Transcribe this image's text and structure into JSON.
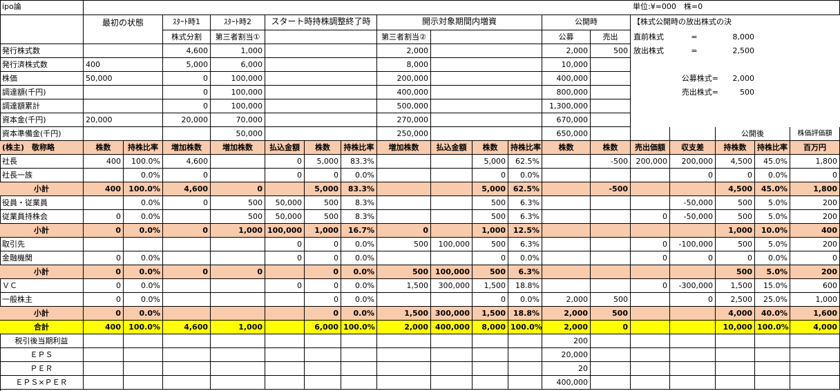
{
  "sheet": {
    "title": "ipo論",
    "unit_note": "単位:¥=000　株=0"
  },
  "top_headers": {
    "initial": "最初の状態",
    "start1": "ｽﾀｰﾄ時1",
    "start2": "ｽﾀｰﾄ時2",
    "start_end": "スタート時持株調整終了時",
    "disclosure": "開示対象期間内増資",
    "listing": "公開時",
    "release_title": "【株式公開時の放出株式の決",
    "split": "株式分割",
    "third1": "第三者割当①",
    "third2": "第三者割当②",
    "public_offer": "公募",
    "sale": "売出"
  },
  "release": {
    "pre_label": "直前株式",
    "pre_eq": "=",
    "pre_val": "8,000",
    "rel_label": "放出株式",
    "rel_eq": "=",
    "rel_val": "2,500",
    "pub_label": "公募株式=",
    "pub_val": "2,000",
    "sale_label": "売出株式=",
    "sale_val": "500"
  },
  "upper_rows": [
    {
      "label": "発行株式数",
      "init": "",
      "s1": "4,600",
      "s2": "1,000",
      "end": "",
      "d2": "2,000",
      "pub": "2,000",
      "sale": "500"
    },
    {
      "label": "発行済株式数",
      "init": "400",
      "s1": "5,000",
      "s2": "6,000",
      "end": "",
      "d2": "8,000",
      "pub": "10,000",
      "sale": ""
    },
    {
      "label": "株価",
      "init": "50,000",
      "s1": "0",
      "s2": "100,000",
      "end": "",
      "d2": "200,000",
      "pub": "400,000",
      "sale": ""
    },
    {
      "label": "調達額(千円)",
      "init": "",
      "s1": "0",
      "s2": "100,000",
      "end": "",
      "d2": "400,000",
      "pub": "800,000",
      "sale": ""
    },
    {
      "label": "調達額累計",
      "init": "",
      "s1": "0",
      "s2": "100,000",
      "end": "",
      "d2": "500,000",
      "pub": "1,300,000",
      "sale": ""
    },
    {
      "label": "資本金(千円)",
      "init": "20,000",
      "s1": "20,000",
      "s2": "70,000",
      "end": "",
      "d2": "270,000",
      "pub": "670,000",
      "sale": ""
    },
    {
      "label": "資本準備金(千円)",
      "init": "",
      "s1": "",
      "s2": "50,000",
      "end": "",
      "d2": "250,000",
      "pub": "650,000",
      "sale": ""
    }
  ],
  "col_headers": {
    "after_listing": "公開後",
    "valuation": "株価評価額",
    "cols": [
      "(株主)　敬称略",
      "株数",
      "持株比率",
      "増加株数",
      "増加株数",
      "払込金額",
      "株数",
      "持株比率",
      "増加株数",
      "払込金額",
      "株数",
      "持株比率",
      "株数",
      "株数",
      "売出価額",
      "収支差",
      "持株数",
      "持株比率",
      "百万円"
    ]
  },
  "rows": [
    {
      "type": "data",
      "cells": [
        "社長",
        "400",
        "100.0%",
        "4,600",
        "",
        "0",
        "5,000",
        "83.3%",
        "",
        "",
        "5,000",
        "62.5%",
        "",
        "-500",
        "200,000",
        "200,000",
        "4,500",
        "45.0%",
        "1,800"
      ]
    },
    {
      "type": "data",
      "cells": [
        "社長一族",
        "",
        "0.0%",
        "0",
        "",
        "0",
        "0",
        "0.0%",
        "",
        "",
        "0",
        "0.0%",
        "",
        "",
        "",
        "0",
        "0",
        "0.0%",
        "0"
      ]
    },
    {
      "type": "sub",
      "cells": [
        "小計",
        "400",
        "100.0%",
        "4,600",
        "0",
        "",
        "5,000",
        "83.3%",
        "",
        "",
        "5,000",
        "62.5%",
        "",
        "-500",
        "",
        "",
        "4,500",
        "45.0%",
        "1,800"
      ]
    },
    {
      "type": "data",
      "cells": [
        "役員・従業員",
        "",
        "0.0%",
        "0",
        "500",
        "50,000",
        "500",
        "8.3%",
        "",
        "",
        "500",
        "6.3%",
        "",
        "",
        "",
        "-50,000",
        "500",
        "5.0%",
        "200"
      ]
    },
    {
      "type": "data",
      "cells": [
        "従業員持株会",
        "0",
        "0.0%",
        "",
        "500",
        "50,000",
        "500",
        "8.3%",
        "",
        "",
        "500",
        "6.3%",
        "",
        "",
        "0",
        "-50,000",
        "500",
        "5.0%",
        "200"
      ]
    },
    {
      "type": "sub",
      "cells": [
        "小計",
        "0",
        "0.0%",
        "0",
        "1,000",
        "100,000",
        "1,000",
        "16.7%",
        "0",
        "",
        "1,000",
        "12.5%",
        "",
        "",
        "",
        "",
        "1,000",
        "10.0%",
        "400"
      ]
    },
    {
      "type": "data",
      "cells": [
        "取引先",
        "",
        "",
        "",
        "",
        "0",
        "0",
        "0.0%",
        "500",
        "100,000",
        "500",
        "6.3%",
        "",
        "",
        "0",
        "-100,000",
        "500",
        "5.0%",
        "200"
      ]
    },
    {
      "type": "data",
      "cells": [
        "金融機関",
        "0",
        "0.0%",
        "",
        "",
        "0",
        "0",
        "0.0%",
        "",
        "",
        "0",
        "0.0%",
        "",
        "",
        "0",
        "0",
        "0",
        "0.0%",
        "0"
      ]
    },
    {
      "type": "sub",
      "cells": [
        "小計",
        "0",
        "0.0%",
        "0",
        "0",
        "",
        "0",
        "0.0%",
        "500",
        "100,000",
        "500",
        "6.3%",
        "",
        "",
        "",
        "",
        "500",
        "5.0%",
        "200"
      ]
    },
    {
      "type": "data",
      "cells": [
        "ＶＣ",
        "0",
        "0.0%",
        "",
        "",
        "0",
        "0",
        "0.0%",
        "1,500",
        "300,000",
        "1,500",
        "18.8%",
        "",
        "",
        "0",
        "-300,000",
        "1,500",
        "15.0%",
        "600"
      ]
    },
    {
      "type": "data",
      "cells": [
        "一般株主",
        "0",
        "0.0%",
        "",
        "",
        "",
        "0",
        "0.0%",
        "",
        "",
        "0",
        "0.0%",
        "2,000",
        "500",
        "",
        "0",
        "2,500",
        "25.0%",
        "1,000"
      ]
    },
    {
      "type": "sub",
      "cells": [
        "小計",
        "0",
        "0.0%",
        "",
        "",
        "",
        "0",
        "0.0%",
        "1,500",
        "300,000",
        "1,500",
        "18.8%",
        "2,000",
        "500",
        "",
        "",
        "4,000",
        "40.0%",
        "1,600"
      ]
    },
    {
      "type": "tot",
      "cells": [
        "合計",
        "400",
        "100.0%",
        "4,600",
        "1,000",
        "",
        "6,000",
        "100.0%",
        "2,000",
        "400,000",
        "8,000",
        "100.0%",
        "2,000",
        "0",
        "",
        "",
        "10,000",
        "100.0%",
        "4,000"
      ]
    }
  ],
  "bottom_rows": [
    {
      "label": "税引後当期利益",
      "value": "200"
    },
    {
      "label": "ＥＰＳ",
      "value": "20,000"
    },
    {
      "label": "ＰＥＲ",
      "value": "20"
    },
    {
      "label": "ＥＰＳ×ＰＥＲ",
      "value": "400,000"
    }
  ]
}
